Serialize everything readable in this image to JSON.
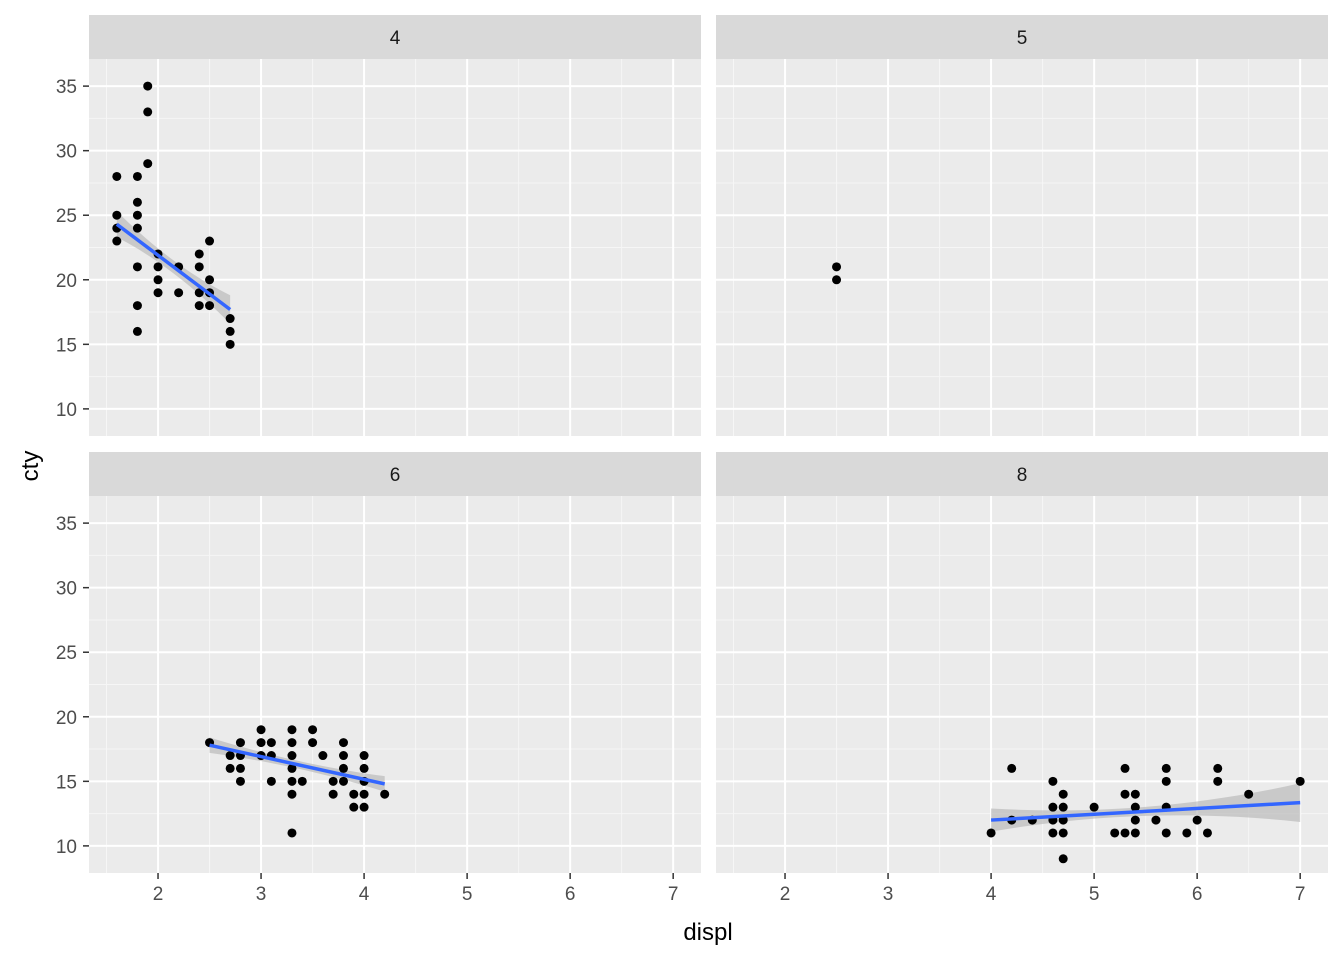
{
  "chart_data": {
    "type": "scatter",
    "xlabel": "displ",
    "ylabel": "cty",
    "xlim": [
      1.33,
      7.27
    ],
    "ylim": [
      7.9,
      37.1
    ],
    "x_ticks": [
      2,
      3,
      4,
      5,
      6,
      7
    ],
    "y_ticks": [
      10,
      15,
      20,
      25,
      30,
      35
    ],
    "facets": [
      {
        "label": "4",
        "points": [
          [
            1.6,
            28
          ],
          [
            1.6,
            25
          ],
          [
            1.6,
            24
          ],
          [
            1.6,
            23
          ],
          [
            1.8,
            28
          ],
          [
            1.8,
            26
          ],
          [
            1.8,
            25
          ],
          [
            1.8,
            24
          ],
          [
            1.8,
            21
          ],
          [
            1.8,
            18
          ],
          [
            1.8,
            16
          ],
          [
            1.9,
            35
          ],
          [
            1.9,
            33
          ],
          [
            1.9,
            29
          ],
          [
            2.0,
            22
          ],
          [
            2.0,
            21
          ],
          [
            2.0,
            20
          ],
          [
            2.0,
            19
          ],
          [
            2.2,
            21
          ],
          [
            2.2,
            19
          ],
          [
            2.4,
            22
          ],
          [
            2.4,
            21
          ],
          [
            2.4,
            19
          ],
          [
            2.4,
            18
          ],
          [
            2.5,
            23
          ],
          [
            2.5,
            20
          ],
          [
            2.5,
            19
          ],
          [
            2.5,
            18
          ],
          [
            2.7,
            17
          ],
          [
            2.7,
            16
          ],
          [
            2.7,
            15
          ]
        ],
        "fit": {
          "x": [
            1.6,
            2.7
          ],
          "y": [
            24.3,
            17.7
          ],
          "band_halfwidth": [
            1.0,
            0.5,
            1.1
          ]
        }
      },
      {
        "label": "5",
        "points": [
          [
            2.5,
            21
          ],
          [
            2.5,
            20
          ]
        ],
        "fit": null
      },
      {
        "label": "6",
        "points": [
          [
            2.5,
            18
          ],
          [
            2.7,
            17
          ],
          [
            2.7,
            16
          ],
          [
            2.8,
            18
          ],
          [
            2.8,
            17
          ],
          [
            2.8,
            16
          ],
          [
            2.8,
            15
          ],
          [
            3.0,
            19
          ],
          [
            3.0,
            18
          ],
          [
            3.0,
            17
          ],
          [
            3.1,
            18
          ],
          [
            3.1,
            17
          ],
          [
            3.1,
            15
          ],
          [
            3.3,
            19
          ],
          [
            3.3,
            18
          ],
          [
            3.3,
            17
          ],
          [
            3.3,
            16
          ],
          [
            3.3,
            15
          ],
          [
            3.3,
            14
          ],
          [
            3.3,
            11
          ],
          [
            3.4,
            15
          ],
          [
            3.5,
            19
          ],
          [
            3.5,
            18
          ],
          [
            3.6,
            17
          ],
          [
            3.7,
            15
          ],
          [
            3.7,
            14
          ],
          [
            3.8,
            18
          ],
          [
            3.8,
            17
          ],
          [
            3.8,
            16
          ],
          [
            3.8,
            15
          ],
          [
            3.9,
            14
          ],
          [
            3.9,
            13
          ],
          [
            4.0,
            17
          ],
          [
            4.0,
            16
          ],
          [
            4.0,
            15
          ],
          [
            4.0,
            14
          ],
          [
            4.0,
            13
          ],
          [
            4.2,
            14
          ]
        ],
        "fit": {
          "x": [
            2.5,
            4.2
          ],
          "y": [
            17.8,
            14.8
          ],
          "band_halfwidth": [
            0.6,
            0.3,
            0.6
          ]
        }
      },
      {
        "label": "8",
        "points": [
          [
            4.0,
            11
          ],
          [
            4.2,
            16
          ],
          [
            4.2,
            12
          ],
          [
            4.4,
            12
          ],
          [
            4.6,
            15
          ],
          [
            4.6,
            13
          ],
          [
            4.6,
            12
          ],
          [
            4.6,
            11
          ],
          [
            4.7,
            14
          ],
          [
            4.7,
            13
          ],
          [
            4.7,
            12
          ],
          [
            4.7,
            11
          ],
          [
            4.7,
            9
          ],
          [
            5.0,
            13
          ],
          [
            5.2,
            11
          ],
          [
            5.3,
            16
          ],
          [
            5.3,
            14
          ],
          [
            5.3,
            11
          ],
          [
            5.4,
            14
          ],
          [
            5.4,
            13
          ],
          [
            5.4,
            12
          ],
          [
            5.4,
            11
          ],
          [
            5.6,
            12
          ],
          [
            5.7,
            16
          ],
          [
            5.7,
            15
          ],
          [
            5.7,
            13
          ],
          [
            5.7,
            11
          ],
          [
            5.9,
            11
          ],
          [
            6.0,
            12
          ],
          [
            6.1,
            11
          ],
          [
            6.2,
            16
          ],
          [
            6.2,
            15
          ],
          [
            6.5,
            14
          ],
          [
            7.0,
            15
          ]
        ],
        "fit": {
          "x": [
            4.0,
            7.0
          ],
          "y": [
            12.0,
            13.35
          ],
          "band_halfwidth": [
            0.9,
            0.35,
            1.5
          ]
        }
      }
    ],
    "colors": {
      "panel_bg": "#ebebeb",
      "strip_bg": "#d9d9d9",
      "grid_major": "#ffffff",
      "grid_minor": "#f6f6f6",
      "point": "#000000",
      "smooth_line": "#3366ff",
      "smooth_band": "#b3b3b3"
    }
  }
}
